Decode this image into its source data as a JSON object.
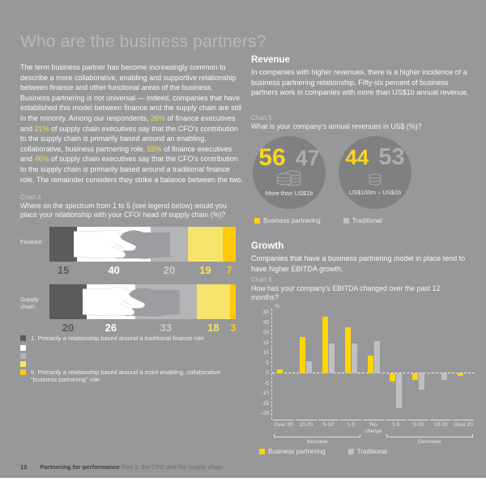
{
  "title": "Who are the business partners?",
  "intro": {
    "segments": [
      {
        "t": "The term business partner has become increasingly common to describe a more collaborative, enabling and supportive relationship between finance and other functional areas of the business. Business partnering is not universal — indeed, companies that have established this model between finance and the supply chain are still in the minority. Among our respondents, ",
        "hl": false
      },
      {
        "t": "26%",
        "hl": true
      },
      {
        "t": " of finance executives and ",
        "hl": false
      },
      {
        "t": "21%",
        "hl": true
      },
      {
        "t": " of supply chain executives say that the CFO's contribution to the supply chain is primarily based around an enabling, collaborative, business partnering role. ",
        "hl": false
      },
      {
        "t": "55%",
        "hl": true
      },
      {
        "t": " of finance executives and ",
        "hl": false
      },
      {
        "t": "46%",
        "hl": true
      },
      {
        "t": " of supply chain executives say that the CFO's contribution to the supply chain is primarily based around a traditional finance role. The remainder considers they strike a balance between the two.",
        "hl": false
      }
    ]
  },
  "colors": {
    "background": "#98989A",
    "highlight_yellow": "#EDE24B",
    "bar_yellow": "#FFD506",
    "traditional_gray": "#C0C0C2",
    "circle_gray": "#7E8082"
  },
  "chart4": {
    "label": "Chart 4",
    "question": "Where on the spectrum from 1 to 5 (see legend below) would you place your relationship with your CFO/ head of supply chain (%)?",
    "chart_data": {
      "type": "stacked-bar",
      "rows": [
        {
          "label": "Finance",
          "values": [
            15,
            40,
            20,
            19,
            7
          ]
        },
        {
          "label": "Supply chain",
          "values": [
            20,
            26,
            33,
            18,
            3
          ]
        }
      ],
      "segment_colors": [
        "#5A5B5D",
        "#FFFFFF",
        "#B3B5B6",
        "#F6E36B",
        "#FFC907"
      ],
      "value_colors": [
        "#5A5B5D",
        "#FFFFFF",
        "#C8CACC",
        "#F6E36B",
        "#FFC907"
      ]
    },
    "legend": [
      {
        "color": "#5A5B5D",
        "label": "1. Primarily a relationship based around a traditional finance role"
      },
      {
        "color": "#FFFFFF",
        "label": ""
      },
      {
        "color": "#B3B5B6",
        "label": ""
      },
      {
        "color": "#F6E36B",
        "label": ""
      },
      {
        "color": "#FFC907",
        "label": "5. Primarily a relationship based around a more enabling, collaborative “business partnering” role"
      }
    ]
  },
  "revenue": {
    "heading": "Revenue",
    "body": "In companies with higher revenues, there is a higher incidence of a business partnering relationship. Fifty-six percent of business partners work in companies with more than US$1b annual revenue.",
    "chart5": {
      "label": "Chart 5",
      "question": "What is your company's annual revenues in US$ (%)?",
      "chart_data": {
        "type": "bar",
        "groups": [
          {
            "label": "More than US$1b",
            "business_partnering": 56,
            "traditional": 47
          },
          {
            "label": "US$100m – US$1b",
            "business_partnering": 44,
            "traditional": 53
          }
        ]
      },
      "legend": [
        {
          "color": "#FFD506",
          "label": "Business partnering"
        },
        {
          "color": "#C0C0C2",
          "label": "Traditional"
        }
      ]
    }
  },
  "growth": {
    "heading": "Growth",
    "body": "Companies that have a business partnering model in place tend to have higher EBITDA growth.",
    "chart6": {
      "label": "Chart 6",
      "question": "How has your company's EBITDA changed over the past 12 months?",
      "chart_data": {
        "type": "bar",
        "ylabel": "%",
        "ylim": [
          -20,
          30
        ],
        "yticks": [
          30,
          25,
          20,
          15,
          10,
          5,
          0,
          -5,
          -10,
          -15,
          -20
        ],
        "categories": [
          "Over 20",
          "10-20",
          "5-10",
          "1-5",
          "No change",
          "1-5",
          "5-10",
          "10-20",
          "Over 20"
        ],
        "series": [
          {
            "name": "Business partnering",
            "color": "#FFD506",
            "values": [
              2,
              18,
              28,
              23,
              9,
              -4,
              -3,
              0,
              -1
            ]
          },
          {
            "name": "Traditional",
            "color": "#C0C0C2",
            "values": [
              0,
              6,
              15,
              15,
              16,
              -17,
              -8,
              -3,
              0
            ]
          }
        ],
        "groups": [
          {
            "label": "Increase",
            "start": 0,
            "end": 3
          },
          {
            "label": "Decrease",
            "start": 5,
            "end": 8
          }
        ],
        "legend": [
          {
            "color": "#FFD506",
            "label": "Business partnering"
          },
          {
            "color": "#C0C0C2",
            "label": "Traditional"
          }
        ]
      }
    }
  },
  "footer": {
    "page_number": "12",
    "title_bold": "Partnering for performance",
    "title_rest": "Part 1: the CFO and the supply chain"
  }
}
